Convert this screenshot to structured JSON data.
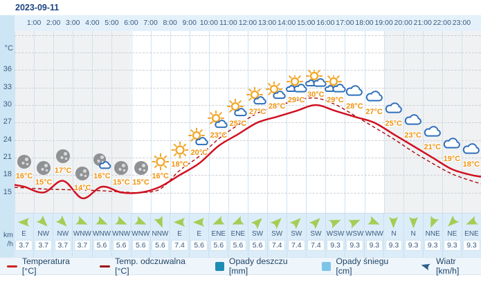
{
  "title_date": "2023-09-11",
  "y_axis": {
    "unit": "°C",
    "ticks": [
      36,
      33,
      30,
      27,
      24,
      21,
      18,
      15
    ]
  },
  "wind_unit": {
    "line1": "km",
    "line2": "/h"
  },
  "hours": [
    "1:00",
    "2:00",
    "3:00",
    "4:00",
    "5:00",
    "6:00",
    "7:00",
    "8:00",
    "9:00",
    "10:00",
    "11:00",
    "12:00",
    "13:00",
    "14:00",
    "15:00",
    "16:00",
    "17:00",
    "18:00",
    "19:00",
    "20:00",
    "21:00",
    "22:00",
    "23:00"
  ],
  "chart_data": {
    "type": "line",
    "x": [
      0,
      1,
      2,
      3,
      4,
      5,
      6,
      7,
      8,
      9,
      10,
      11,
      12,
      13,
      14,
      15,
      16,
      17,
      18,
      19,
      20,
      21,
      22,
      23
    ],
    "series": [
      {
        "name": "Temperatura [°C]",
        "style": "solid",
        "color": "#d01020",
        "values": [
          16,
          15,
          17,
          14,
          16,
          15,
          15,
          16,
          18,
          20,
          23,
          25,
          27,
          28,
          29,
          30,
          29,
          28,
          27,
          25,
          23,
          21,
          19,
          18
        ]
      },
      {
        "name": "Temp. odczuwalna [°C]",
        "style": "dashed",
        "color": "#a6070d",
        "values": [
          15.8,
          15.6,
          15.5,
          15.4,
          15.3,
          15.1,
          15.0,
          15.6,
          18.8,
          21.2,
          24.2,
          26.6,
          28.6,
          29.8,
          30.8,
          31.2,
          30.1,
          28.2,
          26.2,
          24.2,
          22.0,
          20.0,
          18.2,
          17.0
        ]
      }
    ],
    "temp_labels": [
      "16°C",
      "15°C",
      "17°C",
      "14°C",
      "16°C",
      "15°C",
      "15°C",
      "16°C",
      "18°C",
      "20°C",
      "23°C",
      "25°C",
      "27°C",
      "28°C",
      "29°C",
      "30°C",
      "29°C",
      "28°C",
      "27°C",
      "25°C",
      "23°C",
      "21°C",
      "19°C",
      "18°C"
    ],
    "icons": [
      "moon",
      "moon",
      "moon",
      "moon",
      "moon-cloud",
      "moon",
      "moon",
      "sun",
      "sun",
      "sun-cloud",
      "sun-cloud",
      "sun-cloud",
      "sun-cloud",
      "sun-cloud",
      "sun-clouds",
      "sun-clouds",
      "sun-clouds",
      "cloud",
      "cloud",
      "cloud",
      "cloud",
      "cloud",
      "cloud",
      "cloud"
    ],
    "night_hours": [
      0,
      1,
      2,
      3,
      4,
      5,
      19,
      20,
      21,
      22,
      23
    ],
    "ylim": [
      13,
      43
    ],
    "yticks": [
      15,
      18,
      21,
      24,
      27,
      30,
      33,
      36
    ],
    "grid": "horizontal-dashed, vertical-solid-hourly"
  },
  "wind": {
    "directions": [
      "E",
      "NW",
      "NW",
      "WNW",
      "WNW",
      "WNW",
      "WNW",
      "NNW",
      "E",
      "E",
      "ENE",
      "ENE",
      "SW",
      "SW",
      "SW",
      "SW",
      "WSW",
      "WSW",
      "WNW",
      "N",
      "N",
      "NNE",
      "NE",
      "ENE"
    ],
    "speeds": [
      "3.7",
      "3.7",
      "3.7",
      "3.7",
      "5.6",
      "5.6",
      "5.6",
      "5.6",
      "7.4",
      "5.6",
      "5.6",
      "5.6",
      "5.6",
      "7.4",
      "7.4",
      "7.4",
      "9.3",
      "9.3",
      "9.3",
      "9.3",
      "9.3",
      "9.3",
      "9.3",
      "9.3"
    ]
  },
  "legend": {
    "items": [
      {
        "label": "Temperatura [°C]",
        "swatch": "line",
        "color": "#d02020"
      },
      {
        "label": "Temp. odczuwalna [°C]",
        "swatch": "line",
        "color": "#9c1212"
      },
      {
        "label": "Opady deszczu [mm]",
        "swatch": "square",
        "color": "#1f8cb4"
      },
      {
        "label": "Opady śniegu [cm]",
        "swatch": "square",
        "color": "#7cc4e8"
      },
      {
        "label": "Wiatr [km/h]",
        "swatch": "wind-arrow",
        "color": "#2e5f8a"
      }
    ]
  },
  "colors": {
    "date_text": "#1b4382",
    "axis_text": "#3a5b7e",
    "temp_value_label": "#f0940f",
    "night_shade": "#f0f1f2",
    "strip_bg": "#cde6f5",
    "header_bg": "#e4f1fb",
    "wind_row_bg": "#dcedf9",
    "wind_arrow": "#a6cc55",
    "sun": "#f0a527",
    "cloud_stroke": "#2e6fba",
    "moon": "#8f9193"
  }
}
